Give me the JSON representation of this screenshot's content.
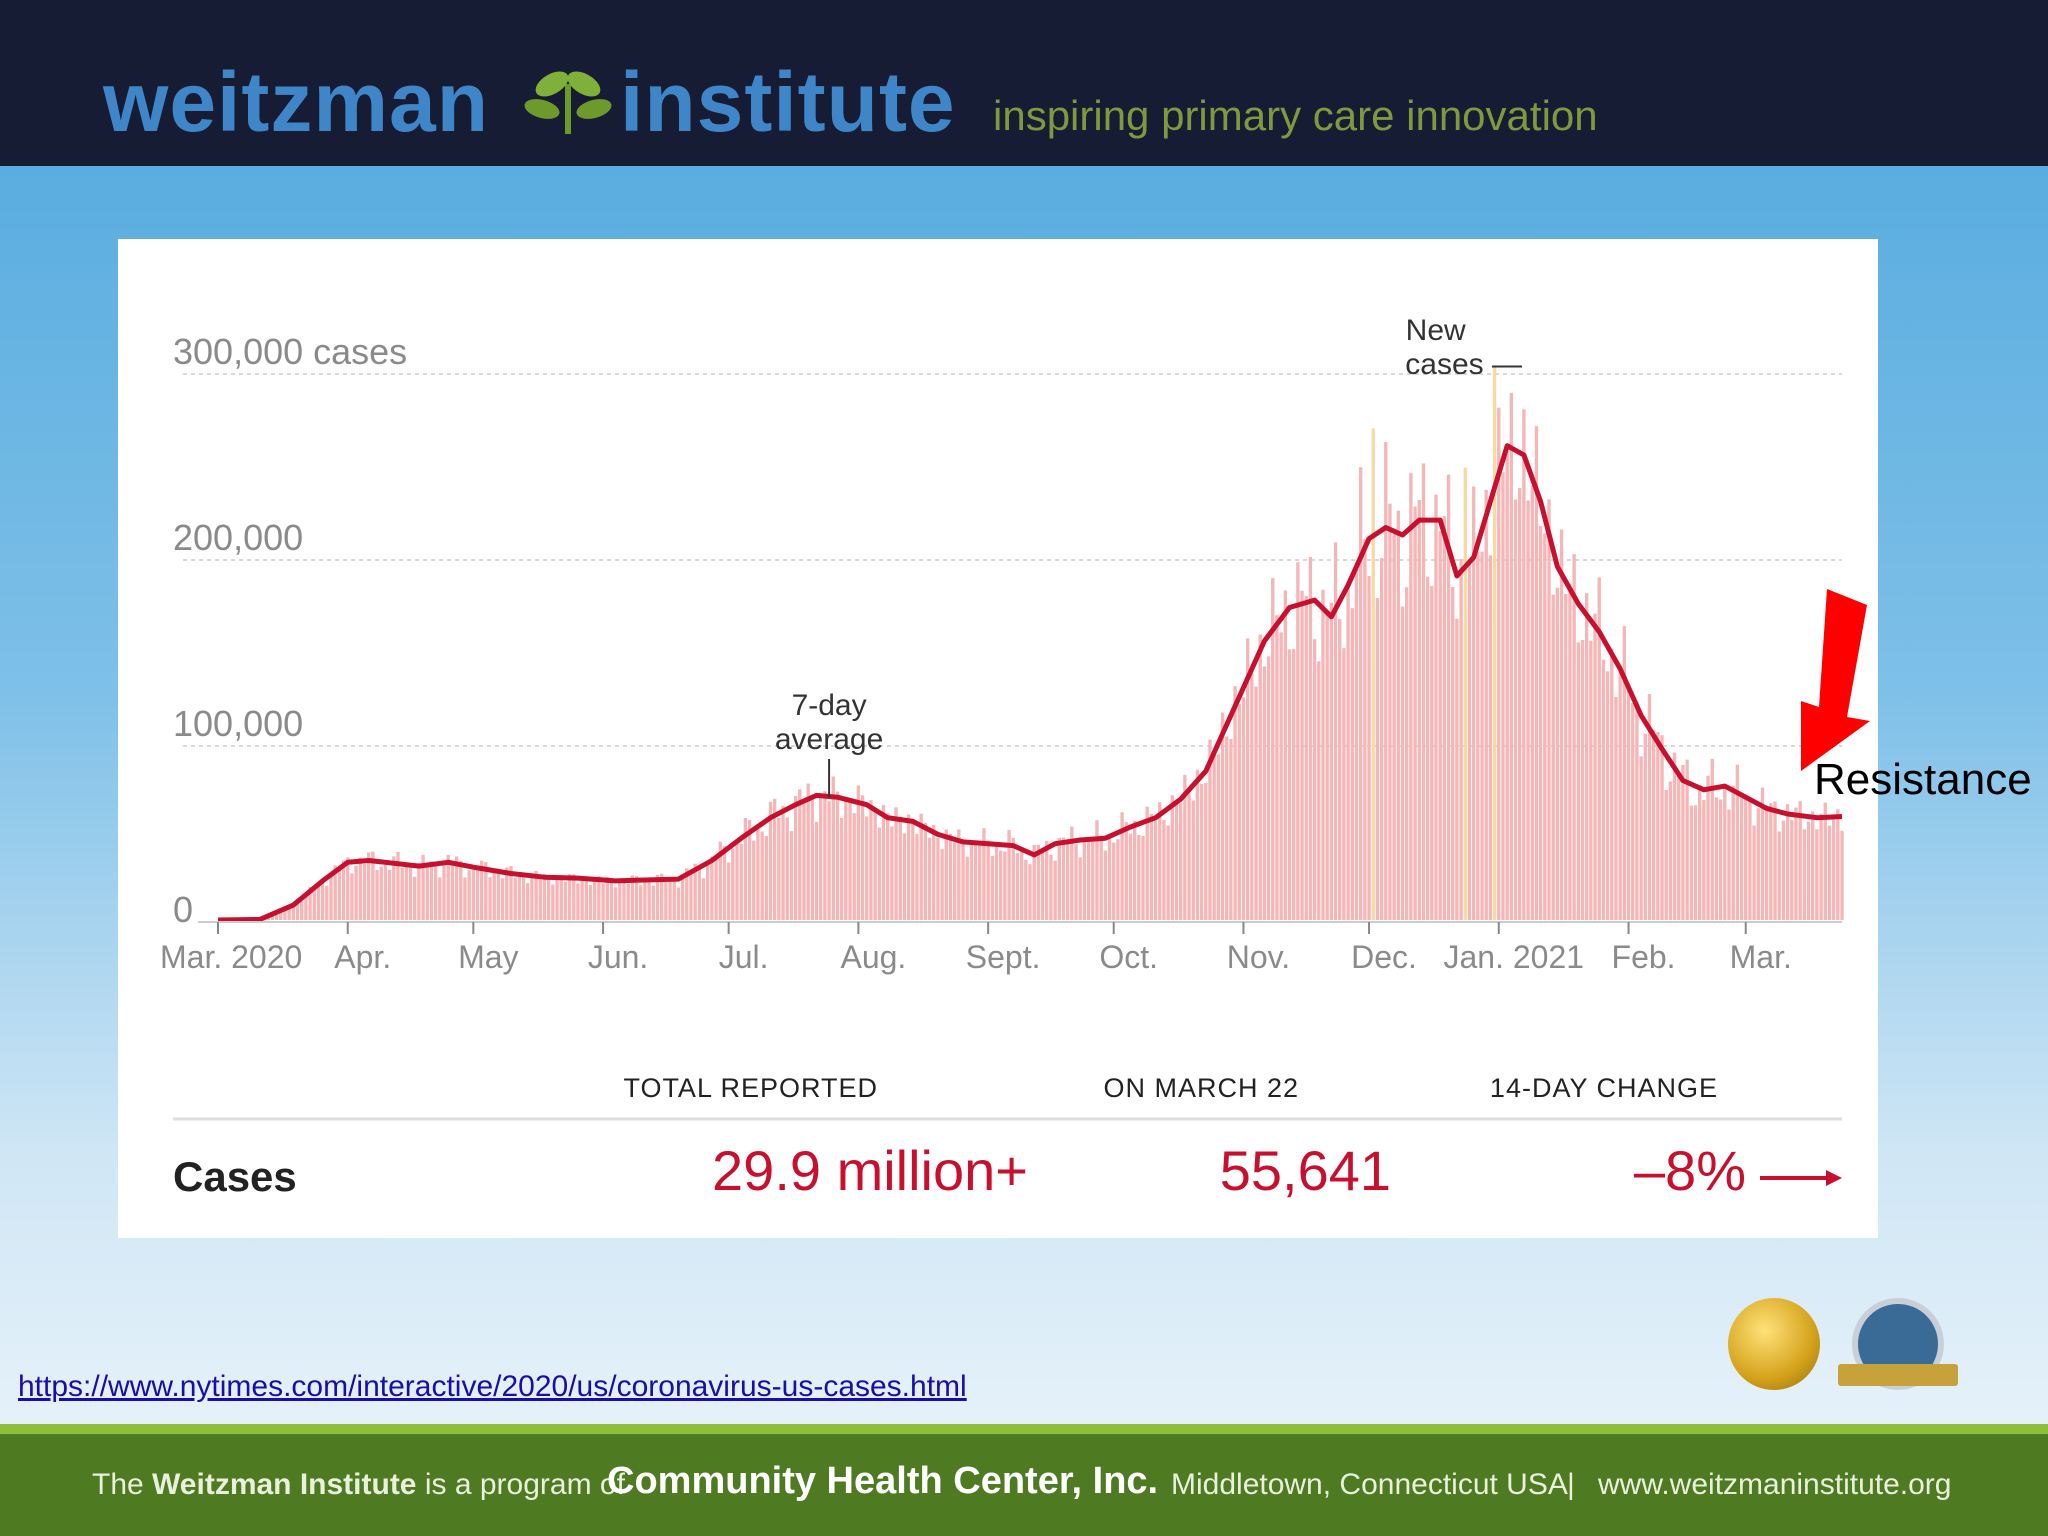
{
  "header": {
    "brand_left": "weitzman",
    "brand_right": "institute",
    "tagline": "inspiring primary care innovation"
  },
  "annotation": {
    "resistance": "Resistance"
  },
  "link": "https://www.nytimes.com/interactive/2020/us/coronavirus-us-cases.html",
  "footer": {
    "program_prefix": "The ",
    "program_name": "Weitzman Institute",
    "program_suffix": " is a program of ",
    "chc": "Community Health Center, Inc.",
    "location": "Middletown, Connecticut USA",
    "separator": "|",
    "website": "www.weitzmaninstitute.org"
  },
  "colors": {
    "line": "#c8102e",
    "bars": "#f4b6b6",
    "bars_highlight": "#f7d9a6",
    "header_bg": "#161c33",
    "footer_bg": "#4e7a22",
    "arrow": "#ff0000"
  },
  "chart_data": {
    "type": "line",
    "title": "",
    "ylabel": "cases",
    "ylim": [
      0,
      300000
    ],
    "yticks": [
      {
        "value": 0,
        "label": "0"
      },
      {
        "value": 100000,
        "label": "100,000"
      },
      {
        "value": 200000,
        "label": "200,000"
      },
      {
        "value": 300000,
        "label": "300,000 cases"
      }
    ],
    "xlim": [
      0,
      388
    ],
    "xticks": [
      {
        "day": 0,
        "label": "Mar. 2020"
      },
      {
        "day": 31,
        "label": "Apr."
      },
      {
        "day": 61,
        "label": "May"
      },
      {
        "day": 92,
        "label": "Jun."
      },
      {
        "day": 122,
        "label": "Jul."
      },
      {
        "day": 153,
        "label": "Aug."
      },
      {
        "day": 184,
        "label": "Sept."
      },
      {
        "day": 214,
        "label": "Oct."
      },
      {
        "day": 245,
        "label": "Nov."
      },
      {
        "day": 275,
        "label": "Dec."
      },
      {
        "day": 306,
        "label": "Jan. 2021"
      },
      {
        "day": 337,
        "label": "Feb."
      },
      {
        "day": 365,
        "label": "Mar."
      }
    ],
    "series": [
      {
        "name": "7-day average",
        "x_day": [
          0,
          10,
          18,
          25,
          31,
          36,
          40,
          48,
          55,
          62,
          70,
          78,
          86,
          95,
          102,
          110,
          118,
          125,
          132,
          138,
          143,
          148,
          155,
          160,
          166,
          172,
          178,
          184,
          190,
          195,
          200,
          206,
          212,
          218,
          224,
          230,
          236,
          240,
          245,
          250,
          256,
          262,
          266,
          270,
          275,
          279,
          283,
          287,
          292,
          296,
          300,
          304,
          308,
          312,
          316,
          320,
          325,
          330,
          335,
          340,
          345,
          350,
          355,
          360,
          365,
          370,
          375,
          382,
          388
        ],
        "y_cases": [
          0,
          300,
          8000,
          21000,
          31000,
          32000,
          31000,
          29000,
          31000,
          28000,
          25000,
          23000,
          22500,
          21000,
          21500,
          22000,
          32000,
          44000,
          55000,
          62000,
          67000,
          66000,
          62000,
          55000,
          53000,
          46000,
          42000,
          41000,
          40000,
          35000,
          41000,
          43000,
          44000,
          50000,
          55000,
          65000,
          80000,
          100000,
          125000,
          150000,
          168000,
          172000,
          163000,
          180000,
          205000,
          211000,
          207000,
          215000,
          215000,
          185000,
          195000,
          225000,
          255000,
          250000,
          225000,
          190000,
          170000,
          155000,
          135000,
          110000,
          92000,
          75000,
          70000,
          72000,
          66000,
          60000,
          57000,
          55000,
          55641
        ]
      }
    ],
    "bars": {
      "name": "New cases",
      "description_kind": "daily"
    },
    "annotations": [
      {
        "label": "7-day average",
        "day": 146
      },
      {
        "label": "New cases —",
        "day": 300
      }
    ],
    "summary": {
      "headers": [
        "TOTAL REPORTED",
        "ON MARCH 22",
        "14-DAY CHANGE"
      ],
      "row_label": "Cases",
      "values": [
        "29.9 million+",
        "55,641",
        "–8%"
      ]
    }
  }
}
